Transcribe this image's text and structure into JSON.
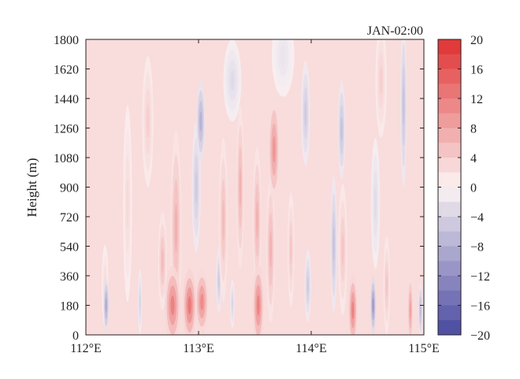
{
  "chart_data": {
    "type": "heatmap",
    "title": "JAN-02:00",
    "xlabel": "",
    "ylabel": "Height (m)",
    "x_ticks": [
      "112°E",
      "113°E",
      "114°E",
      "115°E"
    ],
    "x_range": [
      112,
      115
    ],
    "y_ticks": [
      "0",
      "180",
      "360",
      "540",
      "720",
      "900",
      "1080",
      "1260",
      "1440",
      "1620",
      "1800"
    ],
    "y_range": [
      0,
      1800
    ],
    "colorbar": {
      "ticks": [
        "20",
        "16",
        "12",
        "8",
        "4",
        "0",
        "−4",
        "−8",
        "−12",
        "−16",
        "−20"
      ],
      "range": [
        -20,
        20
      ],
      "step": 2,
      "negative_color": "#4848a0",
      "neutral_color": "#fbf4f4",
      "positive_color": "#e03030"
    },
    "features": [
      {
        "lon": 112.77,
        "h": 180,
        "value": 12,
        "w": 0.07,
        "d": 240
      },
      {
        "lon": 112.92,
        "h": 180,
        "value": 13,
        "w": 0.06,
        "d": 220
      },
      {
        "lon": 113.03,
        "h": 200,
        "value": 11,
        "w": 0.06,
        "d": 200
      },
      {
        "lon": 112.8,
        "h": 650,
        "value": 7,
        "w": 0.05,
        "d": 600
      },
      {
        "lon": 112.68,
        "h": 450,
        "value": 6,
        "w": 0.04,
        "d": 300
      },
      {
        "lon": 113.22,
        "h": 700,
        "value": 6,
        "w": 0.04,
        "d": 500
      },
      {
        "lon": 113.37,
        "h": 900,
        "value": 7,
        "w": 0.035,
        "d": 500
      },
      {
        "lon": 113.53,
        "h": 180,
        "value": 12,
        "w": 0.05,
        "d": 250
      },
      {
        "lon": 113.52,
        "h": 700,
        "value": 7,
        "w": 0.04,
        "d": 450
      },
      {
        "lon": 113.67,
        "h": 1130,
        "value": 10,
        "w": 0.05,
        "d": 320
      },
      {
        "lon": 113.64,
        "h": 520,
        "value": 7,
        "w": 0.04,
        "d": 450
      },
      {
        "lon": 113.82,
        "h": 520,
        "value": 5,
        "w": 0.03,
        "d": 350
      },
      {
        "lon": 114.37,
        "h": 150,
        "value": 12,
        "w": 0.04,
        "d": 220
      },
      {
        "lon": 114.28,
        "h": 520,
        "value": 5,
        "w": 0.04,
        "d": 400
      },
      {
        "lon": 114.67,
        "h": 300,
        "value": 5,
        "w": 0.03,
        "d": 300
      },
      {
        "lon": 114.88,
        "h": 150,
        "value": 9,
        "w": 0.025,
        "d": 220
      },
      {
        "lon": 112.37,
        "h": 800,
        "value": 3,
        "w": 0.04,
        "d": 600
      },
      {
        "lon": 112.17,
        "h": 300,
        "value": 3,
        "w": 0.03,
        "d": 250
      },
      {
        "lon": 112.55,
        "h": 1300,
        "value": 4,
        "w": 0.05,
        "d": 400
      },
      {
        "lon": 114.62,
        "h": 1550,
        "value": 4,
        "w": 0.05,
        "d": 350
      },
      {
        "lon": 113.02,
        "h": 1300,
        "value": -8,
        "w": 0.04,
        "d": 250
      },
      {
        "lon": 112.98,
        "h": 900,
        "value": -5,
        "w": 0.04,
        "d": 400
      },
      {
        "lon": 113.3,
        "h": 1550,
        "value": -3,
        "w": 0.08,
        "d": 250
      },
      {
        "lon": 112.18,
        "h": 180,
        "value": -9,
        "w": 0.025,
        "d": 170
      },
      {
        "lon": 112.48,
        "h": 200,
        "value": -4,
        "w": 0.02,
        "d": 200
      },
      {
        "lon": 113.18,
        "h": 330,
        "value": -5,
        "w": 0.025,
        "d": 200
      },
      {
        "lon": 113.3,
        "h": 190,
        "value": -4,
        "w": 0.02,
        "d": 150
      },
      {
        "lon": 113.95,
        "h": 1350,
        "value": -5,
        "w": 0.04,
        "d": 320
      },
      {
        "lon": 114.27,
        "h": 1250,
        "value": -6,
        "w": 0.035,
        "d": 300
      },
      {
        "lon": 114.2,
        "h": 550,
        "value": -6,
        "w": 0.03,
        "d": 420
      },
      {
        "lon": 113.97,
        "h": 300,
        "value": -5,
        "w": 0.03,
        "d": 220
      },
      {
        "lon": 114.55,
        "h": 180,
        "value": -11,
        "w": 0.025,
        "d": 180
      },
      {
        "lon": 114.57,
        "h": 800,
        "value": -3,
        "w": 0.04,
        "d": 400
      },
      {
        "lon": 114.82,
        "h": 1400,
        "value": -6,
        "w": 0.03,
        "d": 500
      },
      {
        "lon": 114.97,
        "h": 150,
        "value": -7,
        "w": 0.02,
        "d": 170
      },
      {
        "lon": 113.75,
        "h": 1700,
        "value": -2,
        "w": 0.1,
        "d": 250
      }
    ]
  }
}
